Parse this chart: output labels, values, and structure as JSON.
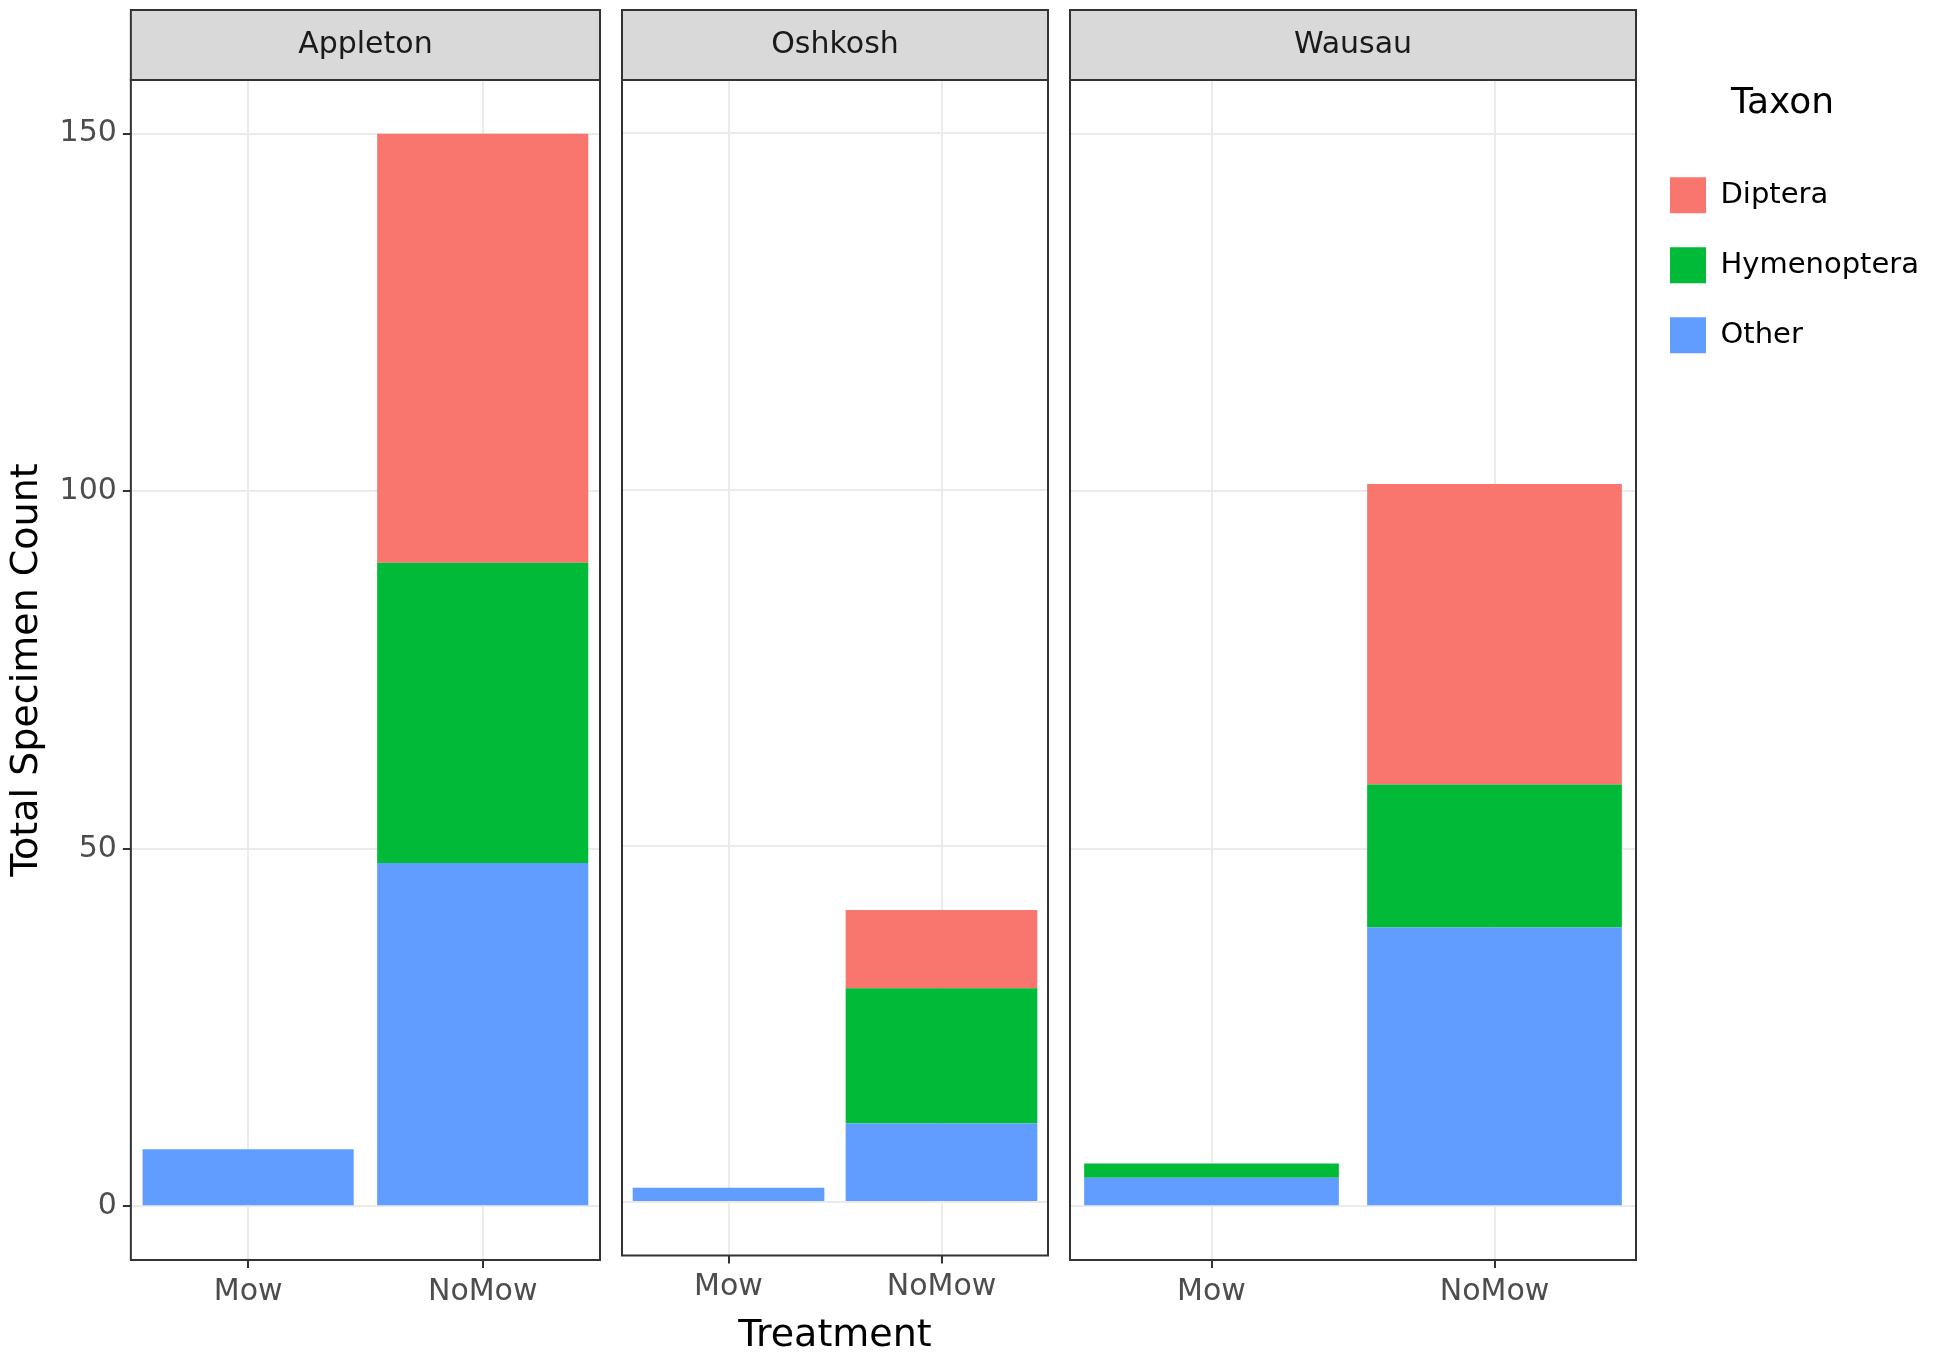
{
  "chart_data": [
    {
      "type": "bar",
      "title": "Appleton",
      "ylabel": "Total Specimen Count",
      "categories": [
        "Mow",
        "NoMow"
      ],
      "stacked": true,
      "ylim": [
        -7.5,
        157.5
      ],
      "yticks": [
        0,
        50,
        100,
        150
      ],
      "grid": true,
      "legend": false,
      "series": [
        {
          "color": "#619cff",
          "values": [
            8,
            48
          ]
        },
        {
          "color": "#00ba38",
          "values": [
            0,
            42
          ]
        },
        {
          "color": "#f8766d",
          "values": [
            0,
            60
          ]
        }
      ]
    },
    {
      "type": "bar",
      "title": "Oshkosh",
      "xlabel": "Treatment",
      "categories": [
        "Mow",
        "NoMow"
      ],
      "stacked": true,
      "ylim": [
        -7.5,
        157.5
      ],
      "tick_labels": "x",
      "grid": true,
      "legend": false,
      "series": [
        {
          "color": "#619cff",
          "values": [
            2,
            11
          ]
        },
        {
          "color": "#00ba38",
          "values": [
            0,
            19
          ]
        },
        {
          "color": "#f8766d",
          "values": [
            0,
            11
          ]
        }
      ]
    },
    {
      "type": "bar",
      "title": "Wausau",
      "categories": [
        "Mow",
        "NoMow"
      ],
      "stacked": true,
      "ylim": [
        -7.5,
        157.5
      ],
      "tick_labels": "x",
      "grid": true,
      "legend": "right",
      "legend_title": "Taxon",
      "series": [
        {
          "name": "Other",
          "color": "#619cff",
          "values": [
            4,
            39
          ]
        },
        {
          "name": "Hymenoptera",
          "color": "#00ba38",
          "values": [
            2,
            20
          ]
        },
        {
          "name": "Diptera",
          "color": "#f8766d",
          "values": [
            0,
            42
          ]
        }
      ]
    }
  ]
}
